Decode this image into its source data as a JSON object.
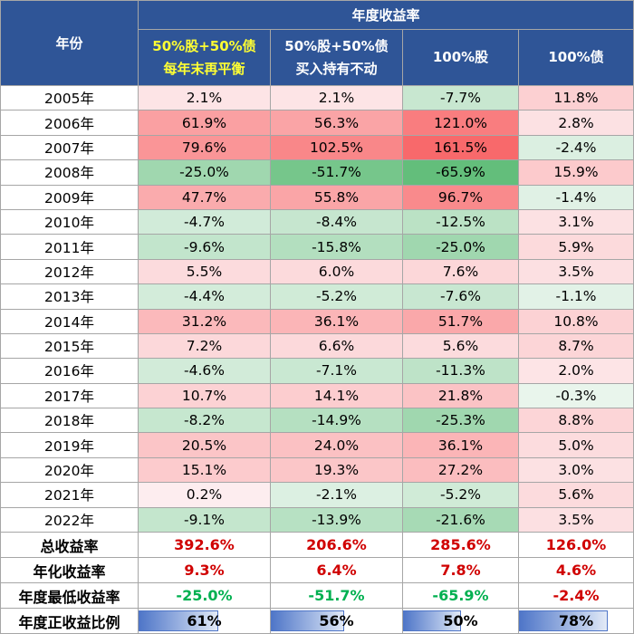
{
  "header": {
    "year_label": "年份",
    "group_label": "年度收益率",
    "columns": [
      {
        "line1": "50%股+50%债",
        "line2": "每年末再平衡"
      },
      {
        "line1": "50%股+50%债",
        "line2": "买入持有不动"
      },
      {
        "line1": "100%股",
        "line2": ""
      },
      {
        "line1": "100%债",
        "line2": ""
      }
    ]
  },
  "rows": [
    {
      "year": "2005年",
      "cells": [
        "2.1%",
        "2.1%",
        "-7.7%",
        "11.8%"
      ],
      "nums": [
        2.1,
        2.1,
        -7.7,
        11.8
      ]
    },
    {
      "year": "2006年",
      "cells": [
        "61.9%",
        "56.3%",
        "121.0%",
        "2.8%"
      ],
      "nums": [
        61.9,
        56.3,
        121.0,
        2.8
      ]
    },
    {
      "year": "2007年",
      "cells": [
        "79.6%",
        "102.5%",
        "161.5%",
        "-2.4%"
      ],
      "nums": [
        79.6,
        102.5,
        161.5,
        -2.4
      ]
    },
    {
      "year": "2008年",
      "cells": [
        "-25.0%",
        "-51.7%",
        "-65.9%",
        "15.9%"
      ],
      "nums": [
        -25.0,
        -51.7,
        -65.9,
        15.9
      ]
    },
    {
      "year": "2009年",
      "cells": [
        "47.7%",
        "55.8%",
        "96.7%",
        "-1.4%"
      ],
      "nums": [
        47.7,
        55.8,
        96.7,
        -1.4
      ]
    },
    {
      "year": "2010年",
      "cells": [
        "-4.7%",
        "-8.4%",
        "-12.5%",
        "3.1%"
      ],
      "nums": [
        -4.7,
        -8.4,
        -12.5,
        3.1
      ]
    },
    {
      "year": "2011年",
      "cells": [
        "-9.6%",
        "-15.8%",
        "-25.0%",
        "5.9%"
      ],
      "nums": [
        -9.6,
        -15.8,
        -25.0,
        5.9
      ]
    },
    {
      "year": "2012年",
      "cells": [
        "5.5%",
        "6.0%",
        "7.6%",
        "3.5%"
      ],
      "nums": [
        5.5,
        6.0,
        7.6,
        3.5
      ]
    },
    {
      "year": "2013年",
      "cells": [
        "-4.4%",
        "-5.2%",
        "-7.6%",
        "-1.1%"
      ],
      "nums": [
        -4.4,
        -5.2,
        -7.6,
        -1.1
      ]
    },
    {
      "year": "2014年",
      "cells": [
        "31.2%",
        "36.1%",
        "51.7%",
        "10.8%"
      ],
      "nums": [
        31.2,
        36.1,
        51.7,
        10.8
      ]
    },
    {
      "year": "2015年",
      "cells": [
        "7.2%",
        "6.6%",
        "5.6%",
        "8.7%"
      ],
      "nums": [
        7.2,
        6.6,
        5.6,
        8.7
      ]
    },
    {
      "year": "2016年",
      "cells": [
        "-4.6%",
        "-7.1%",
        "-11.3%",
        "2.0%"
      ],
      "nums": [
        -4.6,
        -7.1,
        -11.3,
        2.0
      ]
    },
    {
      "year": "2017年",
      "cells": [
        "10.7%",
        "14.1%",
        "21.8%",
        "-0.3%"
      ],
      "nums": [
        10.7,
        14.1,
        21.8,
        -0.3
      ]
    },
    {
      "year": "2018年",
      "cells": [
        "-8.2%",
        "-14.9%",
        "-25.3%",
        "8.8%"
      ],
      "nums": [
        -8.2,
        -14.9,
        -25.3,
        8.8
      ]
    },
    {
      "year": "2019年",
      "cells": [
        "20.5%",
        "24.0%",
        "36.1%",
        "5.0%"
      ],
      "nums": [
        20.5,
        24.0,
        36.1,
        5.0
      ]
    },
    {
      "year": "2020年",
      "cells": [
        "15.1%",
        "19.3%",
        "27.2%",
        "3.0%"
      ],
      "nums": [
        15.1,
        19.3,
        27.2,
        3.0
      ]
    },
    {
      "year": "2021年",
      "cells": [
        "0.2%",
        "-2.1%",
        "-5.2%",
        "5.6%"
      ],
      "nums": [
        0.2,
        -2.1,
        -5.2,
        5.6
      ]
    },
    {
      "year": "2022年",
      "cells": [
        "-9.1%",
        "-13.9%",
        "-21.6%",
        "3.5%"
      ],
      "nums": [
        -9.1,
        -13.9,
        -21.6,
        3.5
      ]
    }
  ],
  "summary": {
    "total": {
      "label": "总收益率",
      "values": [
        "392.6%",
        "206.6%",
        "285.6%",
        "126.0%"
      ]
    },
    "annualized": {
      "label": "年化收益率",
      "values": [
        "9.3%",
        "6.4%",
        "7.8%",
        "4.6%"
      ]
    },
    "worst": {
      "label": "年度最低收益率",
      "values": [
        "-25.0%",
        "-51.7%",
        "-65.9%",
        "-2.4%"
      ]
    },
    "positive_ratio": {
      "label": "年度正收益比例",
      "values": [
        "61%",
        "56%",
        "50%",
        "78%"
      ],
      "fractions": [
        0.61,
        0.56,
        0.5,
        0.78
      ]
    }
  },
  "colors": {
    "header_bg": "#2f5597",
    "header_text": "#ffffff",
    "highlight_text": "#ffff33",
    "positive_strong": "#f8696b",
    "negative_strong": "#63be7b",
    "neutral": "#fcfcff",
    "summary_red": "#d00000",
    "summary_green": "#00b050"
  }
}
